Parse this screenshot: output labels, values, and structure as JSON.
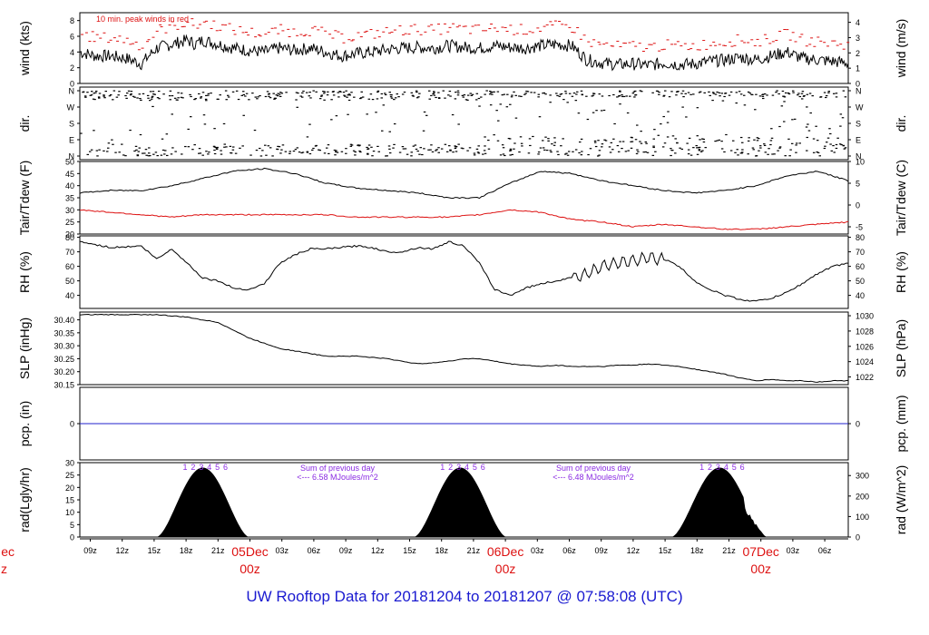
{
  "footer": "UW Rooftop Data for 20181204  to  20181207 @ 07:58:08  (UTC)",
  "colors": {
    "red": "#dd1111",
    "blue": "#2222cc",
    "purple": "#8a2be2",
    "black": "#000000"
  },
  "chart_data": [
    {
      "id": "wind",
      "type": "line",
      "ylabel_left": "wind (kts)",
      "ylabel_right": "wind (m/s)",
      "ylim": [
        0,
        9
      ],
      "left_ticks": [
        "0",
        "2",
        "4",
        "6",
        "8"
      ],
      "right_ticks": [
        "0",
        "1",
        "2",
        "3",
        "4"
      ],
      "annotation": "10 min. peak winds in red",
      "series": [
        {
          "x": [
            0,
            2,
            4,
            6,
            8,
            10,
            12,
            14,
            15,
            16,
            18,
            20,
            22,
            24,
            26,
            28,
            30,
            32,
            34,
            36,
            38,
            40,
            42,
            44,
            46,
            48,
            50,
            52,
            54,
            56,
            58,
            60,
            62,
            64,
            66,
            68,
            70,
            72,
            74,
            76,
            78,
            80,
            82,
            84,
            86,
            88,
            90,
            92,
            94,
            96,
            98,
            100
          ],
          "values": [
            4,
            3.5,
            3.5,
            3.2,
            2.5,
            4.5,
            5,
            5.5,
            5,
            5.5,
            5,
            4.5,
            4.2,
            4,
            4.5,
            4.2,
            4.5,
            4,
            3.5,
            3.8,
            4,
            4.3,
            4.5,
            4.6,
            4.5,
            4.8,
            4.6,
            4.5,
            4.8,
            4.6,
            4.5,
            4.8,
            5,
            4.8,
            3,
            2.6,
            2.4,
            2.5,
            2.3,
            2.6,
            2.4,
            2.5,
            2.8,
            3,
            3.3,
            3,
            3.5,
            4,
            3.2,
            3,
            2.8,
            2.6
          ]
        }
      ]
    },
    {
      "id": "dir",
      "type": "scatter",
      "ylabel_left": "dir.",
      "ylabel_right": "dir.",
      "left_ticks": [
        "N",
        "W",
        "S",
        "E",
        "N"
      ],
      "right_ticks": [
        "N",
        "W",
        "S",
        "E",
        "N"
      ]
    },
    {
      "id": "temp",
      "type": "line",
      "ylabel_left": "Tair/Tdew (F)",
      "ylabel_right": "Tair/Tdew (C)",
      "ylim": [
        20,
        50
      ],
      "left_ticks": [
        "20",
        "25",
        "30",
        "35",
        "40",
        "45",
        "50"
      ],
      "right_ticks": [
        "-5",
        "0",
        "5",
        "10"
      ],
      "series": [
        {
          "name": "Tair",
          "x": [
            0,
            4,
            8,
            12,
            16,
            20,
            24,
            28,
            32,
            36,
            40,
            44,
            48,
            52,
            56,
            60,
            64,
            68,
            72,
            76,
            80,
            84,
            88,
            92,
            96,
            100
          ],
          "values": [
            37,
            38,
            38,
            40,
            43,
            46,
            47,
            45,
            41,
            39,
            38,
            37,
            35,
            35,
            41,
            46,
            45,
            42,
            40,
            38,
            37,
            38,
            40,
            44,
            46,
            42
          ]
        },
        {
          "name": "Tdew",
          "x": [
            0,
            4,
            8,
            12,
            16,
            20,
            24,
            28,
            32,
            36,
            40,
            44,
            48,
            52,
            56,
            60,
            64,
            68,
            72,
            76,
            80,
            84,
            88,
            92,
            96,
            100
          ],
          "values": [
            30,
            29,
            28,
            27,
            28,
            28,
            28,
            28,
            28,
            27,
            27,
            27,
            27,
            28,
            30,
            29,
            26,
            25,
            23,
            24,
            23,
            22,
            22,
            23,
            24,
            25
          ]
        }
      ]
    },
    {
      "id": "rh",
      "type": "line",
      "ylabel_left": "RH (%)",
      "ylabel_right": "RH (%)",
      "ylim": [
        31,
        81
      ],
      "left_ticks": [
        "40",
        "50",
        "60",
        "70",
        "80"
      ],
      "right_ticks": [
        "40",
        "50",
        "60",
        "70",
        "80"
      ],
      "series": [
        {
          "x": [
            0,
            4,
            8,
            10,
            12,
            14,
            16,
            18,
            20,
            22,
            24,
            26,
            28,
            30,
            32,
            34,
            36,
            38,
            40,
            42,
            44,
            46,
            48,
            50,
            52,
            54,
            56,
            58,
            60,
            62,
            64,
            66,
            68,
            70,
            72,
            74,
            76,
            78,
            80,
            82,
            84,
            86,
            88,
            90,
            92,
            94,
            96,
            98,
            100
          ],
          "values": [
            77,
            73,
            74,
            65,
            72,
            62,
            52,
            50,
            45,
            44,
            48,
            62,
            68,
            72,
            72,
            73,
            74,
            73,
            70,
            70,
            73,
            72,
            77,
            74,
            62,
            44,
            40,
            45,
            48,
            50,
            52,
            55,
            60,
            62,
            64,
            66,
            65,
            60,
            50,
            44,
            40,
            37,
            36,
            38,
            42,
            48,
            55,
            60,
            62
          ]
        }
      ]
    },
    {
      "id": "slp",
      "type": "line",
      "ylabel_left": "SLP (inHg)",
      "ylabel_right": "SLP (hPa)",
      "ylim": [
        30.15,
        30.43
      ],
      "left_ticks": [
        "30.15",
        "30.20",
        "30.25",
        "30.30",
        "30.35",
        "30.40"
      ],
      "right_ticks": [
        "1022",
        "1024",
        "1026",
        "1028",
        "1030"
      ],
      "series": [
        {
          "x": [
            0,
            6,
            10,
            14,
            16,
            18,
            20,
            22,
            24,
            26,
            28,
            30,
            32,
            34,
            36,
            38,
            40,
            42,
            44,
            46,
            48,
            50,
            52,
            54,
            56,
            58,
            60,
            62,
            64,
            66,
            68,
            70,
            72,
            74,
            76,
            78,
            80,
            82,
            84,
            86,
            88,
            90,
            92,
            94,
            96,
            98,
            100
          ],
          "values": [
            30.42,
            30.42,
            30.42,
            30.41,
            30.4,
            30.39,
            30.36,
            30.33,
            30.31,
            30.29,
            30.28,
            30.27,
            30.26,
            30.26,
            30.26,
            30.255,
            30.25,
            30.24,
            30.23,
            30.235,
            30.24,
            30.25,
            30.25,
            30.24,
            30.23,
            30.225,
            30.22,
            30.225,
            30.22,
            30.22,
            30.22,
            30.225,
            30.225,
            30.23,
            30.225,
            30.22,
            30.21,
            30.2,
            30.19,
            30.175,
            30.165,
            30.17,
            30.165,
            30.165,
            30.16,
            30.165,
            30.165
          ]
        }
      ]
    },
    {
      "id": "pcp",
      "type": "line",
      "ylabel_left": "pcp. (in)",
      "ylabel_right": "pcp. (mm)",
      "left_ticks": [
        "0"
      ],
      "right_ticks": [
        "0"
      ],
      "series": [
        {
          "x": [
            0,
            100
          ],
          "values": [
            0,
            0
          ]
        }
      ]
    },
    {
      "id": "rad",
      "type": "area",
      "ylabel_left": "rad(Lgly/hr)",
      "ylabel_right": "rad (W/m^2)",
      "ylim": [
        0,
        30
      ],
      "left_ticks": [
        "0",
        "5",
        "10",
        "15",
        "20",
        "25",
        "30"
      ],
      "right_ticks": [
        "0",
        "100",
        "200",
        "300"
      ],
      "days": [
        {
          "start": 10,
          "end": 22,
          "peak": 28
        },
        {
          "start": 43.5,
          "end": 55.5,
          "peak": 28
        },
        {
          "start": 77,
          "end": 89.5,
          "peak": 28
        }
      ],
      "hour_markers": [
        "1",
        "2",
        "3",
        "4",
        "5",
        "6"
      ],
      "sums": [
        {
          "line1": "Sum of previous day",
          "line2": "<--- 6.58 MJoules/m^2"
        },
        {
          "line1": "Sum of previous day",
          "line2": "<--- 6.48 MJoules/m^2"
        }
      ]
    }
  ],
  "time_axis": {
    "ticks": [
      {
        "label": "09z",
        "red": false
      },
      {
        "label": "12z",
        "red": false
      },
      {
        "label": "15z",
        "red": false
      },
      {
        "label": "18z",
        "red": false
      },
      {
        "label": "21z",
        "red": false
      },
      {
        "label": "05Dec",
        "red": true,
        "sub": "00z"
      },
      {
        "label": "03z",
        "red": false
      },
      {
        "label": "06z",
        "red": false
      },
      {
        "label": "09z",
        "red": false
      },
      {
        "label": "12z",
        "red": false
      },
      {
        "label": "15z",
        "red": false
      },
      {
        "label": "18z",
        "red": false
      },
      {
        "label": "21z",
        "red": false
      },
      {
        "label": "06Dec",
        "red": true,
        "sub": "00z"
      },
      {
        "label": "03z",
        "red": false
      },
      {
        "label": "06z",
        "red": false
      },
      {
        "label": "09z",
        "red": false
      },
      {
        "label": "12z",
        "red": false
      },
      {
        "label": "15z",
        "red": false
      },
      {
        "label": "18z",
        "red": false
      },
      {
        "label": "21z",
        "red": false
      },
      {
        "label": "07Dec",
        "red": true,
        "sub": "00z"
      },
      {
        "label": "03z",
        "red": false
      },
      {
        "label": "06z",
        "red": false
      }
    ],
    "left_cut": {
      "label": "ec",
      "sub": "z"
    }
  }
}
